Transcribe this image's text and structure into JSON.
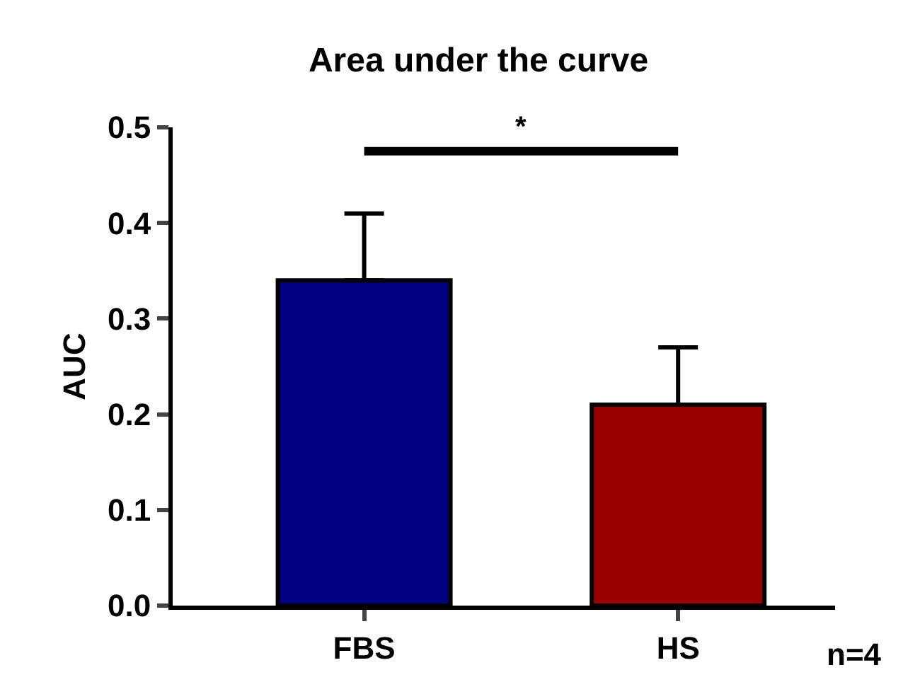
{
  "chart_data": {
    "type": "bar",
    "title": "Area under the curve",
    "ylabel": "AUC",
    "categories": [
      "FBS",
      "HS"
    ],
    "values": [
      0.34,
      0.21
    ],
    "colors": [
      "#000080",
      "#990000"
    ],
    "errors": [
      [
        0.34,
        0.41
      ],
      [
        0.21,
        0.27
      ]
    ],
    "ylim": [
      0,
      0.5
    ],
    "yticks": [
      {
        "value": 0,
        "label": "0.0"
      },
      0.1,
      0.2,
      0.3,
      0.4,
      0.5
    ],
    "annotations": [
      "*",
      "n=4"
    ]
  }
}
